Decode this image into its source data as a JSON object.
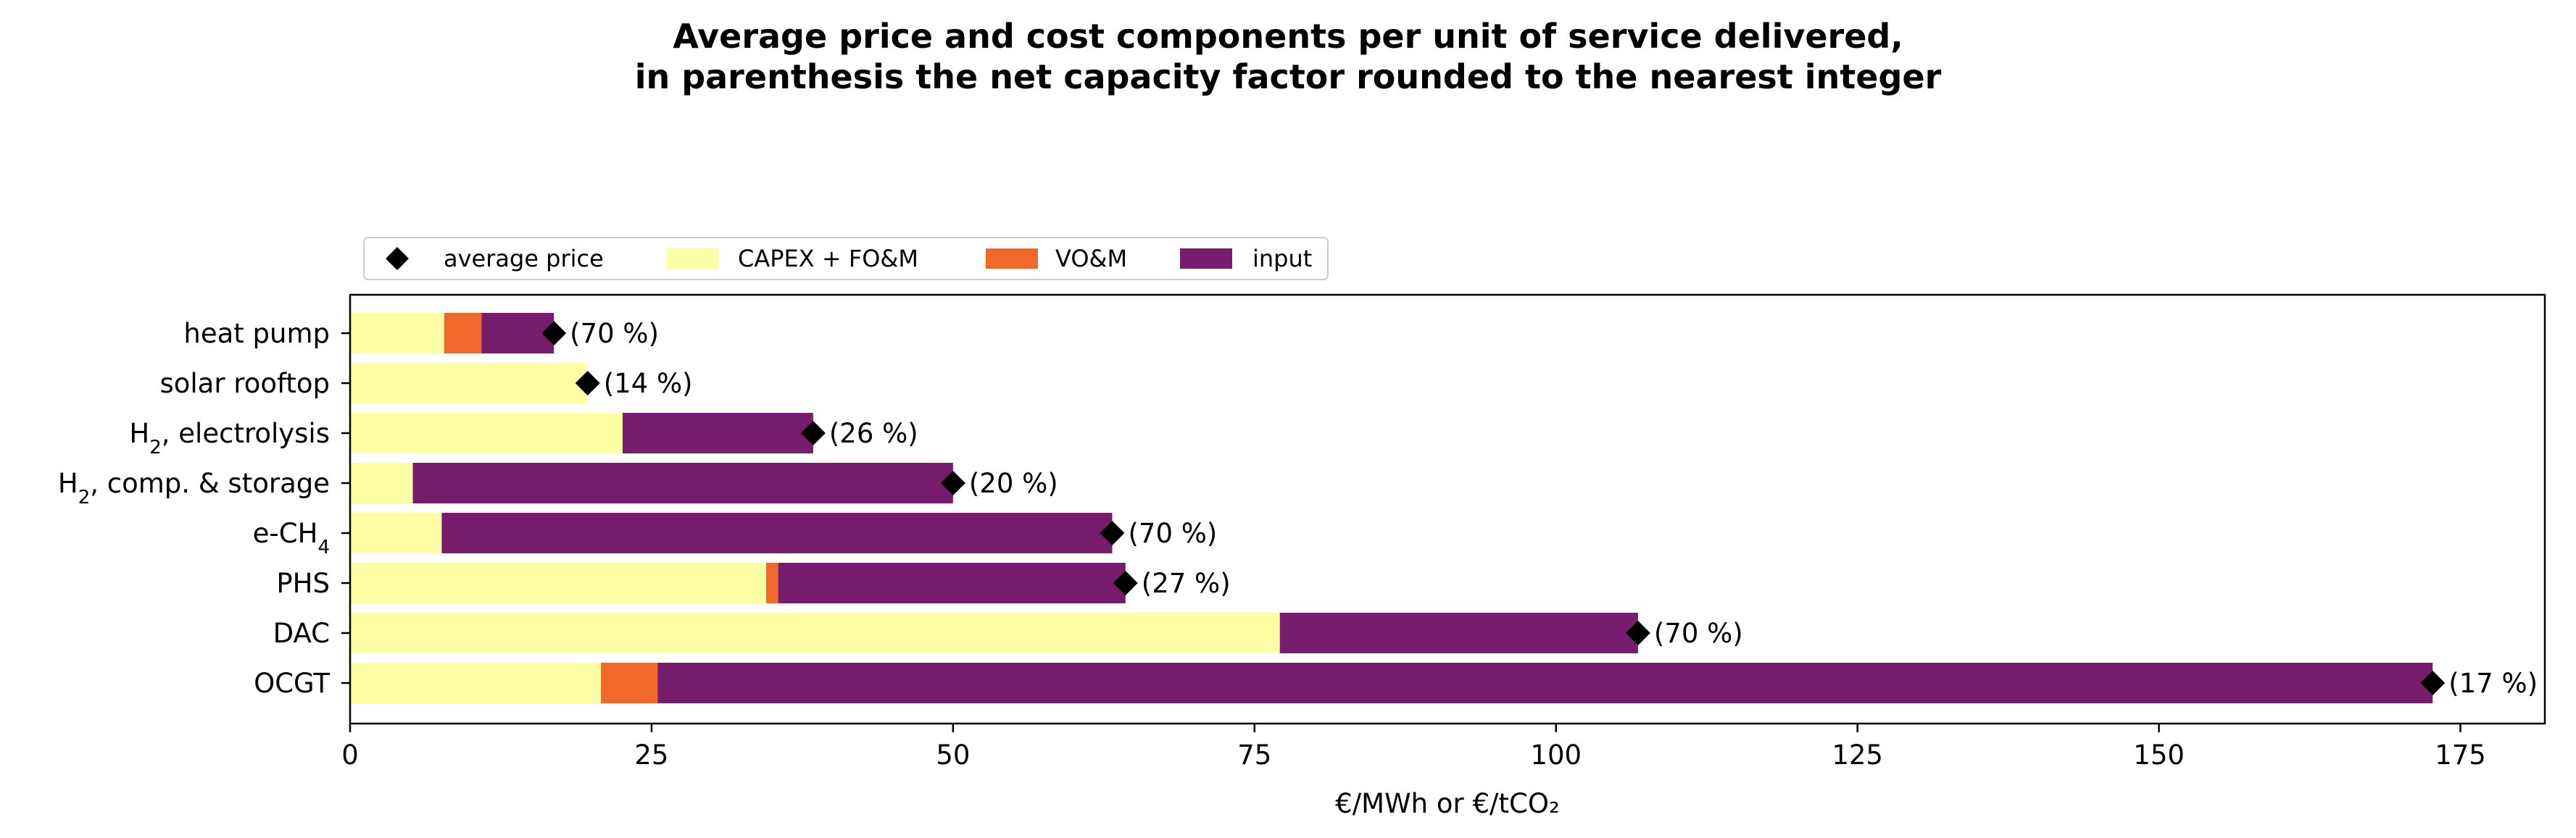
{
  "chart_data": {
    "type": "bar",
    "orientation": "horizontal",
    "stacked": true,
    "title": [
      "Average price and cost components per unit of service delivered,",
      "in parenthesis the net capacity factor rounded to the nearest integer"
    ],
    "xlabel": "€/MWh or €/tCO₂",
    "xlim": [
      0,
      182
    ],
    "xticks": [
      "0",
      "25",
      "50",
      "75",
      "100",
      "125",
      "150",
      "175"
    ],
    "grid": false,
    "legend": {
      "placement": "top-left, above plot",
      "entries": [
        "average price",
        "CAPEX + FO&M",
        "VO&M",
        "input"
      ]
    },
    "categories": [
      {
        "label": "heat pump",
        "sub": ""
      },
      {
        "label": "solar rooftop",
        "sub": ""
      },
      {
        "label": "H",
        "sub": "2",
        "suffix": ", electrolysis"
      },
      {
        "label": "H",
        "sub": "2",
        "suffix": ", comp. & storage"
      },
      {
        "label": "e-CH",
        "sub": "4",
        "suffix": ""
      },
      {
        "label": "PHS",
        "sub": ""
      },
      {
        "label": "DAC",
        "sub": ""
      },
      {
        "label": "OCGT",
        "sub": ""
      }
    ],
    "series": [
      {
        "name": "CAPEX + FO&M",
        "color": "#fcfea4",
        "values": [
          7.8,
          19.7,
          22.6,
          5.2,
          7.6,
          34.5,
          77.1,
          20.8
        ]
      },
      {
        "name": "VO&M",
        "color": "#f1682b",
        "values": [
          3.1,
          0,
          0,
          0,
          0,
          1.0,
          0,
          4.7
        ]
      },
      {
        "name": "input",
        "color": "#781c6d",
        "values": [
          6.0,
          0,
          15.8,
          44.8,
          55.6,
          28.8,
          29.7,
          147.2
        ]
      }
    ],
    "average_price": {
      "name": "average price",
      "color": "#000000",
      "values": [
        16.9,
        19.7,
        38.4,
        50.0,
        63.2,
        64.3,
        106.8,
        172.7
      ]
    },
    "capacity_factor_labels": [
      "(70 %)",
      "(14 %)",
      "(26 %)",
      "(20 %)",
      "(70 %)",
      "(27 %)",
      "(70 %)",
      "(17 %)"
    ]
  }
}
